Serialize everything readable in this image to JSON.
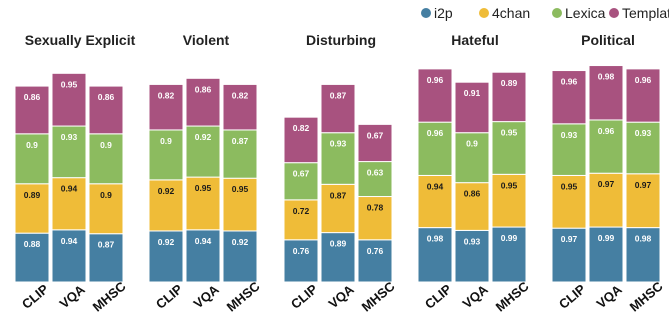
{
  "chart_data": {
    "type": "bar",
    "stacked": true,
    "legend": {
      "placement": "top-right",
      "entries": [
        {
          "name": "i2p",
          "color": "#457fa2"
        },
        {
          "name": "4chan",
          "color": "#efbc38"
        },
        {
          "name": "Lexica",
          "color": "#8cbb5f"
        },
        {
          "name": "Template",
          "color": "#a8527f"
        }
      ]
    },
    "categories": [
      "CLIP",
      "VQA",
      "MHSC"
    ],
    "panels": [
      {
        "title": "Sexually Explicit",
        "series": [
          {
            "name": "i2p",
            "values": [
              0.88,
              0.94,
              0.87
            ]
          },
          {
            "name": "4chan",
            "values": [
              0.89,
              0.94,
              0.9
            ]
          },
          {
            "name": "Lexica",
            "values": [
              0.9,
              0.93,
              0.9
            ]
          },
          {
            "name": "Template",
            "values": [
              0.86,
              0.95,
              0.86
            ]
          }
        ]
      },
      {
        "title": "Violent",
        "series": [
          {
            "name": "i2p",
            "values": [
              0.92,
              0.94,
              0.92
            ]
          },
          {
            "name": "4chan",
            "values": [
              0.92,
              0.95,
              0.95
            ]
          },
          {
            "name": "Lexica",
            "values": [
              0.9,
              0.92,
              0.87
            ]
          },
          {
            "name": "Template",
            "values": [
              0.82,
              0.86,
              0.82
            ]
          }
        ]
      },
      {
        "title": "Disturbing",
        "series": [
          {
            "name": "i2p",
            "values": [
              0.76,
              0.89,
              0.76
            ]
          },
          {
            "name": "4chan",
            "values": [
              0.72,
              0.87,
              0.78
            ]
          },
          {
            "name": "Lexica",
            "values": [
              0.67,
              0.93,
              0.63
            ]
          },
          {
            "name": "Template",
            "values": [
              0.82,
              0.87,
              0.67
            ]
          }
        ]
      },
      {
        "title": "Hateful",
        "series": [
          {
            "name": "i2p",
            "values": [
              0.98,
              0.93,
              0.99
            ]
          },
          {
            "name": "4chan",
            "values": [
              0.94,
              0.86,
              0.95
            ]
          },
          {
            "name": "Lexica",
            "values": [
              0.96,
              0.9,
              0.95
            ]
          },
          {
            "name": "Template",
            "values": [
              0.96,
              0.91,
              0.89
            ]
          }
        ]
      },
      {
        "title": "Political",
        "series": [
          {
            "name": "i2p",
            "values": [
              0.97,
              0.99,
              0.98
            ]
          },
          {
            "name": "4chan",
            "values": [
              0.95,
              0.97,
              0.97
            ]
          },
          {
            "name": "Lexica",
            "values": [
              0.93,
              0.96,
              0.93
            ]
          },
          {
            "name": "Template",
            "values": [
              0.96,
              0.98,
              0.96
            ]
          }
        ]
      }
    ],
    "grid": false,
    "ylim": [
      0,
      4
    ]
  }
}
